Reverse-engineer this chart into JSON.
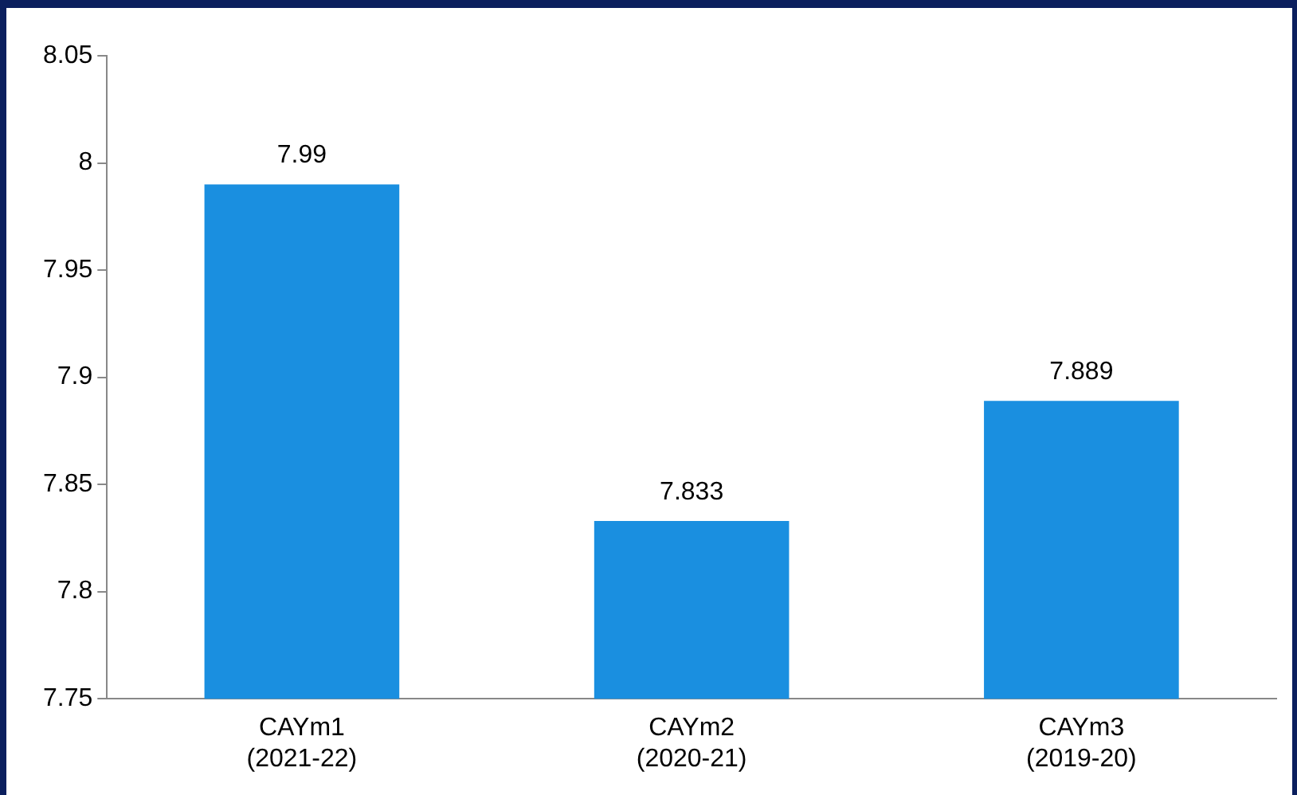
{
  "chart_data": {
    "type": "bar",
    "categories": [
      "CAYm1 (2021-22)",
      "CAYm2 (2020-21)",
      "CAYm3 (2019-20)"
    ],
    "values": [
      7.99,
      7.833,
      7.889
    ],
    "color": "#1a8fe0",
    "ylim": [
      7.75,
      8.05
    ],
    "yticks": [
      7.75,
      7.8,
      7.85,
      7.9,
      7.95,
      8,
      8.05
    ],
    "grid": false,
    "legend": false,
    "data_labels": true
  }
}
